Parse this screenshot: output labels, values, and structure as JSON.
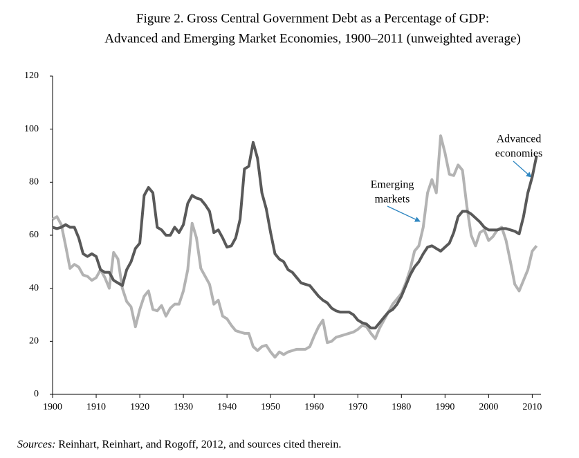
{
  "chart_data": {
    "type": "line",
    "title": "Figure 2. Gross Central Government Debt as a Percentage of GDP:",
    "subtitle": "Advanced and Emerging Market Economies, 1900–2011 (unweighted average)",
    "x": [
      1900,
      1901,
      1902,
      1903,
      1904,
      1905,
      1906,
      1907,
      1908,
      1909,
      1910,
      1911,
      1912,
      1913,
      1914,
      1915,
      1916,
      1917,
      1918,
      1919,
      1920,
      1921,
      1922,
      1923,
      1924,
      1925,
      1926,
      1927,
      1928,
      1929,
      1930,
      1931,
      1932,
      1933,
      1934,
      1935,
      1936,
      1937,
      1938,
      1939,
      1940,
      1941,
      1942,
      1943,
      1944,
      1945,
      1946,
      1947,
      1948,
      1949,
      1950,
      1951,
      1952,
      1953,
      1954,
      1955,
      1956,
      1957,
      1958,
      1959,
      1960,
      1961,
      1962,
      1963,
      1964,
      1965,
      1966,
      1967,
      1968,
      1969,
      1970,
      1971,
      1972,
      1973,
      1974,
      1975,
      1976,
      1977,
      1978,
      1979,
      1980,
      1981,
      1982,
      1983,
      1984,
      1985,
      1986,
      1987,
      1988,
      1989,
      1990,
      1991,
      1992,
      1993,
      1994,
      1995,
      1996,
      1997,
      1998,
      1999,
      2000,
      2001,
      2002,
      2003,
      2004,
      2005,
      2006,
      2007,
      2008,
      2009,
      2010,
      2011
    ],
    "series": [
      {
        "name": "Advanced economies",
        "color": "#595959",
        "values": [
          63,
          62.5,
          63,
          64,
          63,
          63,
          59,
          53,
          52,
          53,
          52,
          47,
          46,
          46,
          43,
          42,
          41,
          47,
          50,
          55,
          57,
          75,
          78,
          76,
          63,
          62,
          60,
          60,
          63,
          61,
          64,
          72,
          75,
          74,
          73.5,
          71.5,
          69,
          61,
          62,
          59,
          55.5,
          56,
          59,
          66,
          85,
          86,
          95,
          89,
          76,
          70,
          61,
          53,
          51,
          50,
          47,
          46,
          44,
          42,
          41.5,
          41,
          39,
          37,
          35.5,
          34.5,
          32.5,
          31.5,
          31,
          31,
          31,
          30,
          28,
          27,
          26.5,
          25,
          25,
          27,
          29,
          31,
          32,
          34,
          37,
          41,
          45,
          48,
          50,
          53,
          55.5,
          56,
          55,
          54,
          55.5,
          57,
          61,
          67,
          69,
          69,
          68,
          66.5,
          65,
          63,
          62,
          62,
          62,
          62.5,
          62.5,
          62,
          61.5,
          60.5,
          67,
          76,
          82,
          90
        ]
      },
      {
        "name": "Emerging markets",
        "color": "#b3b3b3",
        "values": [
          66,
          67,
          64,
          56,
          47.5,
          49,
          48,
          45,
          44.5,
          43,
          44,
          47,
          44,
          40,
          53.5,
          51,
          40,
          35,
          33,
          25.5,
          32,
          37,
          39,
          32,
          31.5,
          33.5,
          29.5,
          32.5,
          34,
          34,
          39,
          47,
          64.5,
          59,
          47.5,
          44.5,
          41.5,
          34,
          35.5,
          29.5,
          28.5,
          26,
          24,
          23.5,
          23,
          23,
          18,
          16.5,
          18,
          18.5,
          16,
          14,
          16,
          15,
          16,
          16.5,
          17,
          17,
          17,
          18,
          22,
          25.5,
          28,
          19.5,
          20,
          21.5,
          22,
          22.5,
          23,
          23.5,
          24.5,
          26,
          25.5,
          23,
          21,
          25,
          28,
          31,
          34,
          36,
          38,
          42,
          47,
          54,
          56,
          63,
          76,
          81,
          76,
          97.5,
          91,
          83,
          82.5,
          86.5,
          84.5,
          71,
          60,
          56,
          61,
          62,
          58,
          59.5,
          62,
          63,
          58,
          50,
          41.5,
          39,
          43,
          47,
          54,
          56
        ]
      }
    ],
    "annotations": [
      {
        "lines": [
          "Advanced",
          "economies"
        ]
      },
      {
        "lines": [
          "Emerging",
          "markets"
        ]
      }
    ],
    "xlim": [
      1900,
      2012
    ],
    "xticks": [
      1900,
      1910,
      1920,
      1930,
      1940,
      1950,
      1960,
      1970,
      1980,
      1990,
      2000,
      2010
    ],
    "ylim": [
      0,
      120
    ],
    "yticks": [
      0,
      20,
      40,
      60,
      80,
      100,
      120
    ],
    "grid": false,
    "source_label": "Sources:",
    "source_text": " Reinhart, Reinhart, and Rogoff, 2012, and sources cited therein."
  }
}
